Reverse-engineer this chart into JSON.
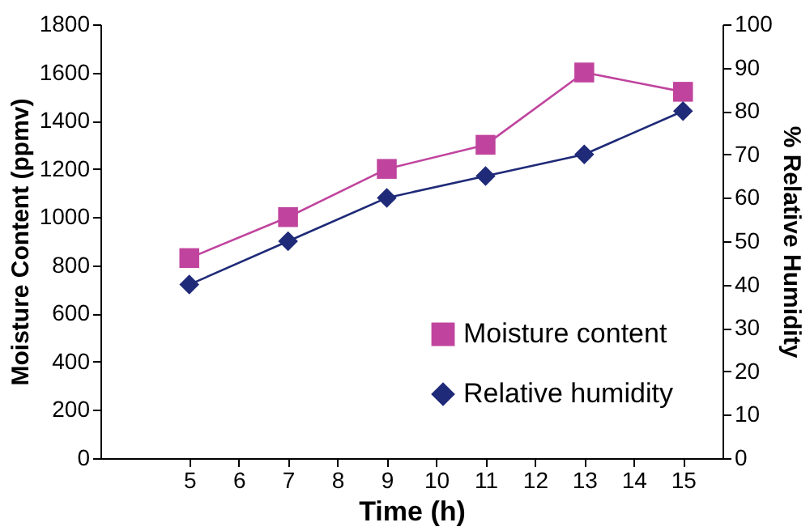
{
  "chart_data": {
    "type": "line",
    "xlabel": "Time (h)",
    "ylabel": "Moisture Content (ppmv)",
    "y2label": "% Relative Humidity",
    "x": [
      5,
      7,
      9,
      11,
      13,
      15
    ],
    "series": [
      {
        "name": "Moisture content",
        "color": "#c0449e",
        "marker": "square",
        "values": [
          830,
          1000,
          1200,
          1300,
          1600,
          1520
        ]
      },
      {
        "name": "Relative humidity",
        "color": "#1f2a78",
        "marker": "diamond",
        "axis": "y2",
        "values": [
          40,
          50,
          60,
          65,
          70,
          80
        ]
      }
    ],
    "xlim": [
      3.2,
      15.8
    ],
    "xticks": [
      5,
      6,
      7,
      8,
      9,
      10,
      11,
      12,
      13,
      14,
      15
    ],
    "ylim": [
      0,
      1800
    ],
    "yticks": [
      0,
      200,
      400,
      600,
      800,
      1000,
      1200,
      1400,
      1600,
      1800
    ],
    "y2lim": [
      0,
      100
    ],
    "y2ticks": [
      0,
      10,
      20,
      30,
      40,
      50,
      60,
      70,
      80,
      90,
      100
    ],
    "legend": "bottom right",
    "grid": false
  }
}
